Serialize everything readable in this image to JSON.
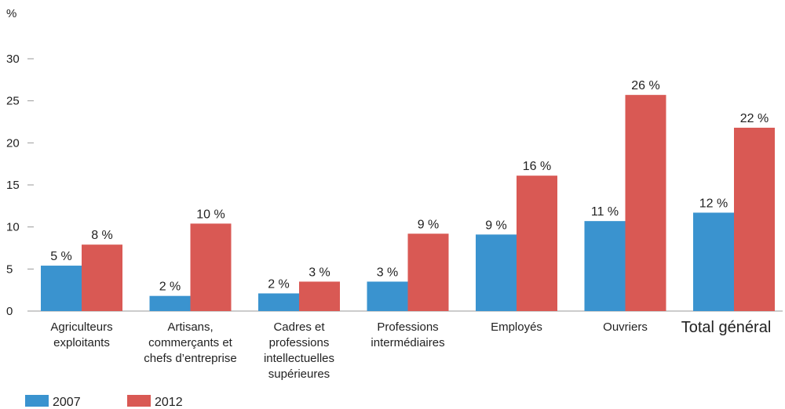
{
  "chart_data": {
    "type": "bar",
    "unit_label": "%",
    "categories": [
      [
        "Agriculteurs",
        "exploitants"
      ],
      [
        "Artisans,",
        "commerçants et",
        "chefs d’entreprise"
      ],
      [
        "Cadres et",
        "professions",
        "intellectuelles",
        "supérieures"
      ],
      [
        "Professions",
        "intermédiaires"
      ],
      [
        "Employés"
      ],
      [
        "Ouvriers"
      ],
      [
        "Total général"
      ]
    ],
    "series": [
      {
        "name": "2007",
        "color": "#3a93cf",
        "values": [
          5.4,
          1.8,
          2.1,
          3.5,
          9.1,
          10.7,
          11.7
        ],
        "labels": [
          "5 %",
          "2 %",
          "2 %",
          "3 %",
          "9 %",
          "11 %",
          "12 %"
        ]
      },
      {
        "name": "2012",
        "color": "#d95954",
        "values": [
          7.9,
          10.4,
          3.5,
          9.2,
          16.1,
          25.7,
          21.8
        ],
        "labels": [
          "8 %",
          "10 %",
          "3 %",
          "9 %",
          "16 %",
          "26 %",
          "22 %"
        ]
      }
    ],
    "yticks": [
      "0",
      "5",
      "10",
      "15",
      "20",
      "25",
      "30"
    ],
    "ylim": [
      0,
      30
    ],
    "grid": false,
    "legend_position": "bottom-left"
  }
}
